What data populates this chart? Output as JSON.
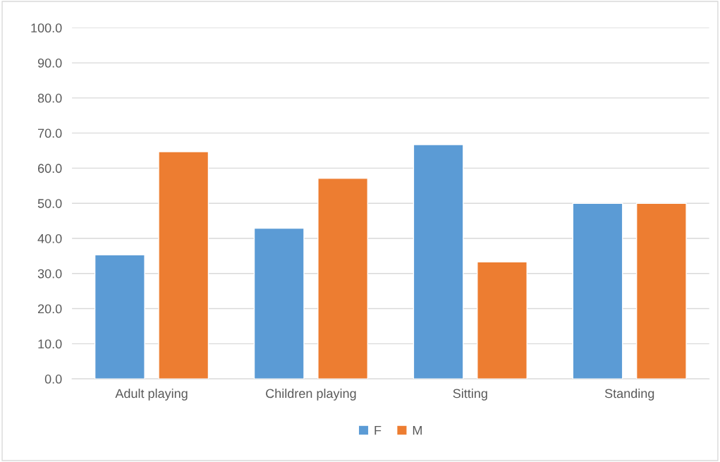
{
  "chart_data": {
    "type": "bar",
    "categories": [
      "Adult playing",
      "Children playing",
      "Sitting",
      "Standing"
    ],
    "series": [
      {
        "name": "F",
        "color": "#5b9bd5",
        "values": [
          35.3,
          42.9,
          66.7,
          50.0
        ]
      },
      {
        "name": "M",
        "color": "#ed7d31",
        "values": [
          64.7,
          57.1,
          33.3,
          50.0
        ]
      }
    ],
    "ylim": [
      0,
      100
    ],
    "yticks": [
      {
        "value": 0,
        "label": "0.0"
      },
      {
        "value": 10,
        "label": "10.0"
      },
      {
        "value": 20,
        "label": "20.0"
      },
      {
        "value": 30,
        "label": "30.0"
      },
      {
        "value": 40,
        "label": "40.0"
      },
      {
        "value": 50,
        "label": "50.0"
      },
      {
        "value": 60,
        "label": "60.0"
      },
      {
        "value": 70,
        "label": "70.0"
      },
      {
        "value": 80,
        "label": "80.0"
      },
      {
        "value": 90,
        "label": "90.0"
      },
      {
        "value": 100,
        "label": "100.0"
      }
    ],
    "grid": "y",
    "legend": "bottom"
  }
}
